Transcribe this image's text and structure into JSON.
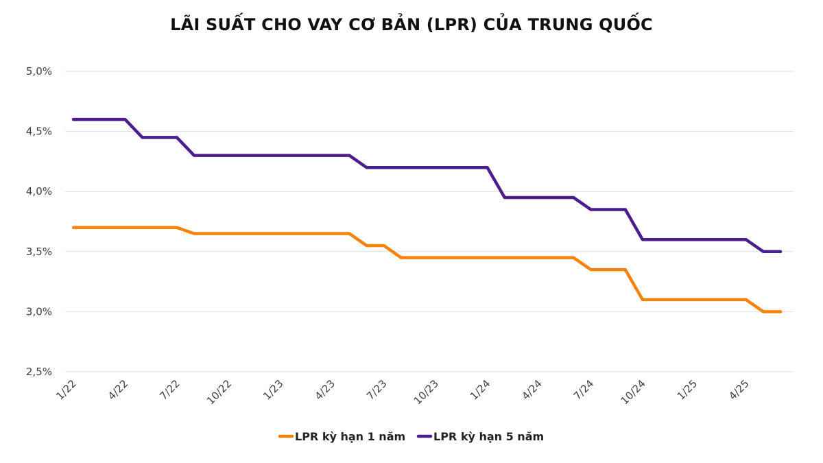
{
  "chart_data": {
    "type": "line",
    "title": "LÃI SUẤT CHO VAY CƠ BẢN (LPR) CỦA TRUNG QUỐC",
    "xlabel": "",
    "ylabel": "",
    "ylim": [
      2.5,
      5.0
    ],
    "y_ticks": [
      2.5,
      3.0,
      3.5,
      4.0,
      4.5,
      5.0
    ],
    "y_tick_labels": [
      "2,5%",
      "3,0%",
      "3,5%",
      "4,0%",
      "4,5%",
      "5,0%"
    ],
    "x_tick_labels": [
      "1/22",
      "4/22",
      "7/22",
      "10/22",
      "1/23",
      "4/23",
      "7/23",
      "10/23",
      "1/24",
      "4/24",
      "7/24",
      "10/24",
      "1/25",
      "4/25"
    ],
    "x": [
      "1/22",
      "2/22",
      "3/22",
      "4/22",
      "5/22",
      "6/22",
      "7/22",
      "8/22",
      "9/22",
      "10/22",
      "11/22",
      "12/22",
      "1/23",
      "2/23",
      "3/23",
      "4/23",
      "5/23",
      "6/23",
      "7/23",
      "8/23",
      "9/23",
      "10/23",
      "11/23",
      "12/23",
      "1/24",
      "2/24",
      "3/24",
      "4/24",
      "5/24",
      "6/24",
      "7/24",
      "8/24",
      "9/24",
      "10/24",
      "11/24",
      "12/24",
      "1/25",
      "2/25",
      "3/25",
      "4/25",
      "5/25",
      "6/25"
    ],
    "grid": true,
    "legend": "bottom-center",
    "series": [
      {
        "name": "LPR kỳ hạn 1 năm",
        "color": "#F5820A",
        "values": [
          3.7,
          3.7,
          3.7,
          3.7,
          3.7,
          3.7,
          3.7,
          3.65,
          3.65,
          3.65,
          3.65,
          3.65,
          3.65,
          3.65,
          3.65,
          3.65,
          3.65,
          3.55,
          3.55,
          3.45,
          3.45,
          3.45,
          3.45,
          3.45,
          3.45,
          3.45,
          3.45,
          3.45,
          3.45,
          3.45,
          3.35,
          3.35,
          3.35,
          3.1,
          3.1,
          3.1,
          3.1,
          3.1,
          3.1,
          3.1,
          3.0,
          3.0
        ]
      },
      {
        "name": "LPR kỳ hạn 5 năm",
        "color": "#4B1D8C",
        "values": [
          4.6,
          4.6,
          4.6,
          4.6,
          4.45,
          4.45,
          4.45,
          4.3,
          4.3,
          4.3,
          4.3,
          4.3,
          4.3,
          4.3,
          4.3,
          4.3,
          4.3,
          4.2,
          4.2,
          4.2,
          4.2,
          4.2,
          4.2,
          4.2,
          4.2,
          3.95,
          3.95,
          3.95,
          3.95,
          3.95,
          3.85,
          3.85,
          3.85,
          3.6,
          3.6,
          3.6,
          3.6,
          3.6,
          3.6,
          3.6,
          3.5,
          3.5
        ]
      }
    ]
  }
}
